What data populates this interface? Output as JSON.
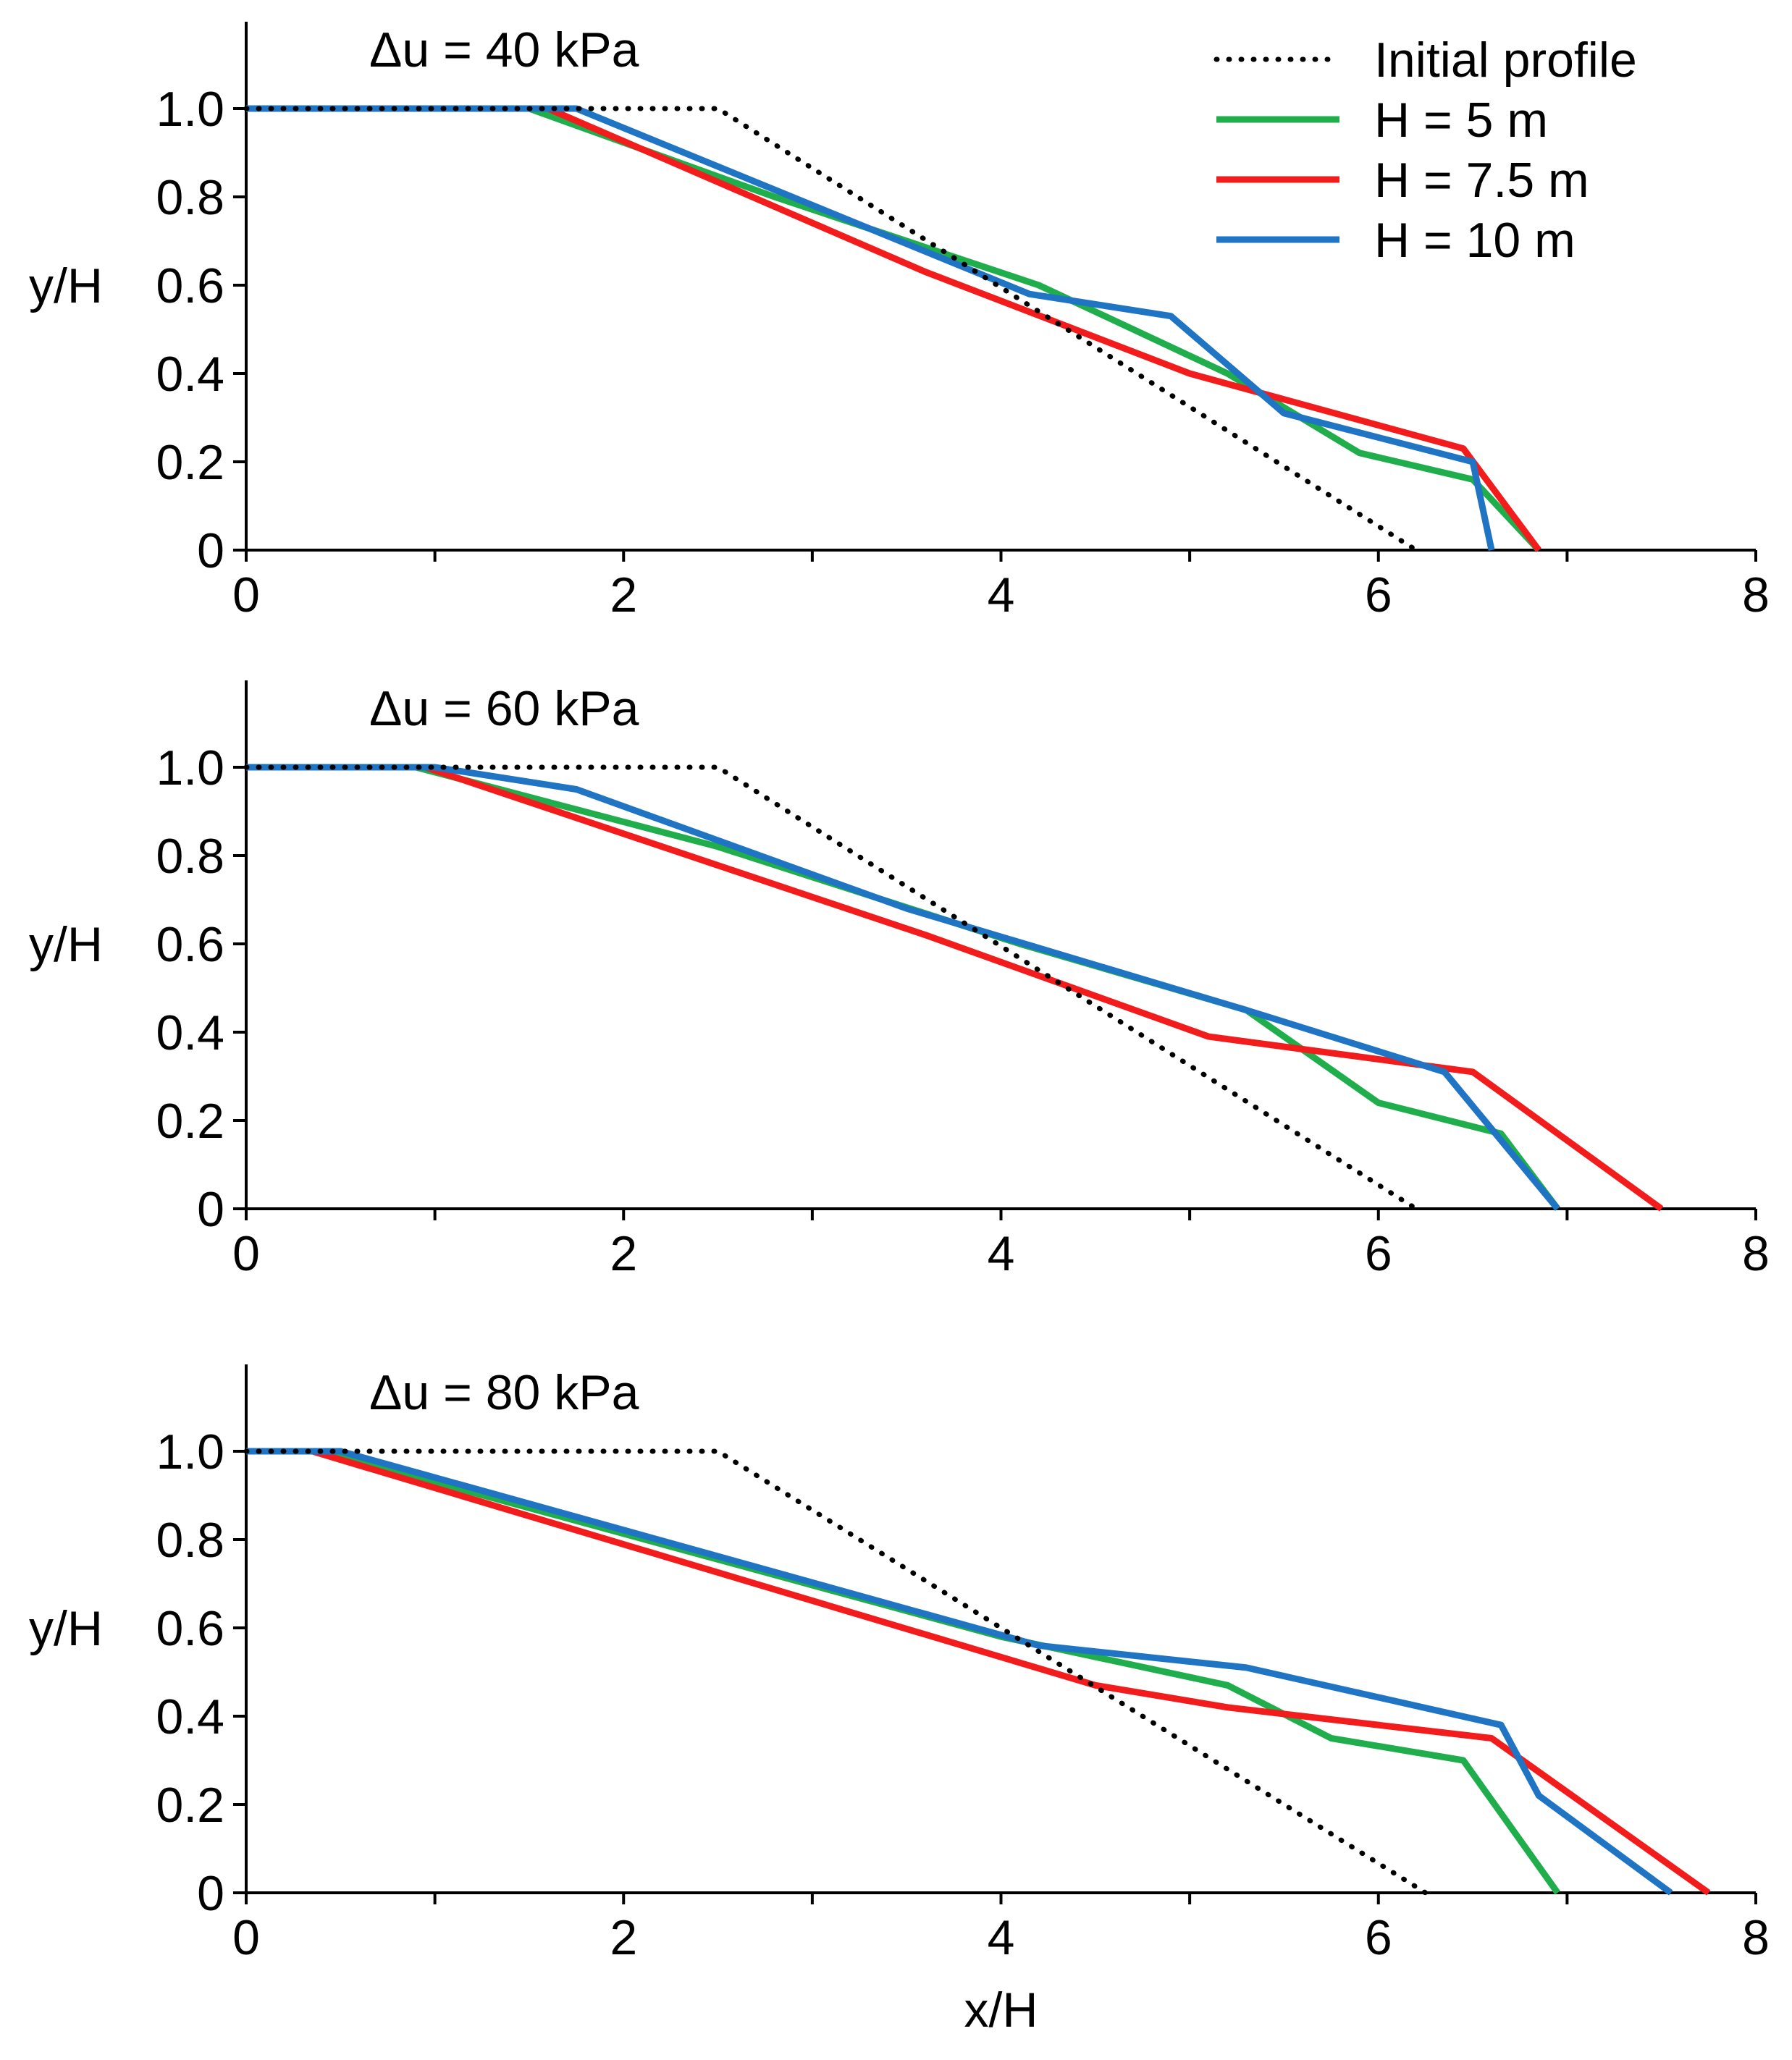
{
  "chart_data": [
    {
      "type": "line",
      "title": "Δu = 40 kPa",
      "xlabel": "",
      "ylabel": "y/H",
      "xlim": [
        0,
        8
      ],
      "ylim": [
        0,
        1.2
      ],
      "xticks": [
        "0",
        "2",
        "4",
        "6",
        "8"
      ],
      "yticks": [
        "0",
        "0.2",
        "0.4",
        "0.6",
        "0.8",
        "1.0"
      ],
      "grid": false,
      "legend": "top-right",
      "series": [
        {
          "name": "Initial profile",
          "style": "dotted",
          "color": "#000000",
          "x": [
            0,
            2.5,
            6.2
          ],
          "y": [
            1.0,
            1.0,
            0
          ]
        },
        {
          "name": "H = 5 m",
          "style": "solid",
          "color": "#1fae4b",
          "x": [
            0,
            1.5,
            2.8,
            4.2,
            5.2,
            5.9,
            6.5,
            6.85
          ],
          "y": [
            1.0,
            1.0,
            0.8,
            0.6,
            0.4,
            0.22,
            0.16,
            0
          ]
        },
        {
          "name": "H = 7.5 m",
          "style": "solid",
          "color": "#f21c1c",
          "x": [
            0,
            1.6,
            3.6,
            5.0,
            6.45,
            6.85
          ],
          "y": [
            1.0,
            1.0,
            0.63,
            0.4,
            0.23,
            0
          ]
        },
        {
          "name": "H = 10 m",
          "style": "solid",
          "color": "#1f74c4",
          "x": [
            0,
            1.75,
            4.15,
            4.9,
            5.5,
            6.5,
            6.6
          ],
          "y": [
            1.0,
            1.0,
            0.58,
            0.53,
            0.31,
            0.2,
            0
          ]
        }
      ]
    },
    {
      "type": "line",
      "title": "Δu = 60 kPa",
      "xlabel": "",
      "ylabel": "y/H",
      "xlim": [
        0,
        8
      ],
      "ylim": [
        0,
        1.2
      ],
      "xticks": [
        "0",
        "2",
        "4",
        "6",
        "8"
      ],
      "yticks": [
        "0",
        "0.2",
        "0.4",
        "0.6",
        "0.8",
        "1.0"
      ],
      "grid": false,
      "series": [
        {
          "name": "Initial profile",
          "style": "dotted",
          "color": "#000000",
          "x": [
            0,
            2.5,
            6.2
          ],
          "y": [
            1.0,
            1.0,
            0
          ]
        },
        {
          "name": "H = 5 m",
          "style": "solid",
          "color": "#1fae4b",
          "x": [
            0,
            0.9,
            2.5,
            4.1,
            5.3,
            6.0,
            6.65,
            6.95
          ],
          "y": [
            1.0,
            1.0,
            0.82,
            0.6,
            0.45,
            0.24,
            0.17,
            0
          ]
        },
        {
          "name": "H = 7.5 m",
          "style": "solid",
          "color": "#f21c1c",
          "x": [
            0,
            0.95,
            3.6,
            5.1,
            6.5,
            7.5
          ],
          "y": [
            1.0,
            1.0,
            0.62,
            0.39,
            0.31,
            0
          ]
        },
        {
          "name": "H = 10 m",
          "style": "solid",
          "color": "#1f74c4",
          "x": [
            0,
            1.0,
            1.75,
            3.5,
            5.3,
            6.35,
            6.95
          ],
          "y": [
            1.0,
            1.0,
            0.95,
            0.68,
            0.45,
            0.31,
            0
          ]
        }
      ]
    },
    {
      "type": "line",
      "title": "Δu = 80 kPa",
      "xlabel": "x/H",
      "ylabel": "y/H",
      "xlim": [
        0,
        8
      ],
      "ylim": [
        0,
        1.2
      ],
      "xticks": [
        "0",
        "2",
        "4",
        "6",
        "8"
      ],
      "yticks": [
        "0",
        "0.2",
        "0.4",
        "0.6",
        "0.8",
        "1.0"
      ],
      "grid": false,
      "series": [
        {
          "name": "Initial profile",
          "style": "dotted",
          "color": "#000000",
          "x": [
            0,
            2.5,
            6.25
          ],
          "y": [
            1.0,
            1.0,
            0
          ]
        },
        {
          "name": "H = 5 m",
          "style": "solid",
          "color": "#1fae4b",
          "x": [
            0,
            0.4,
            4.0,
            5.2,
            5.75,
            6.45,
            6.95
          ],
          "y": [
            1.0,
            1.0,
            0.58,
            0.47,
            0.35,
            0.3,
            0
          ]
        },
        {
          "name": "H = 7.5 m",
          "style": "solid",
          "color": "#f21c1c",
          "x": [
            0,
            0.35,
            4.5,
            5.2,
            6.6,
            7.75
          ],
          "y": [
            1.0,
            1.0,
            0.47,
            0.42,
            0.35,
            0
          ]
        },
        {
          "name": "H = 10 m",
          "style": "solid",
          "color": "#1f74c4",
          "x": [
            0,
            0.5,
            4.2,
            5.3,
            6.65,
            6.85,
            7.55
          ],
          "y": [
            1.0,
            1.0,
            0.56,
            0.51,
            0.38,
            0.22,
            0
          ]
        }
      ]
    }
  ]
}
